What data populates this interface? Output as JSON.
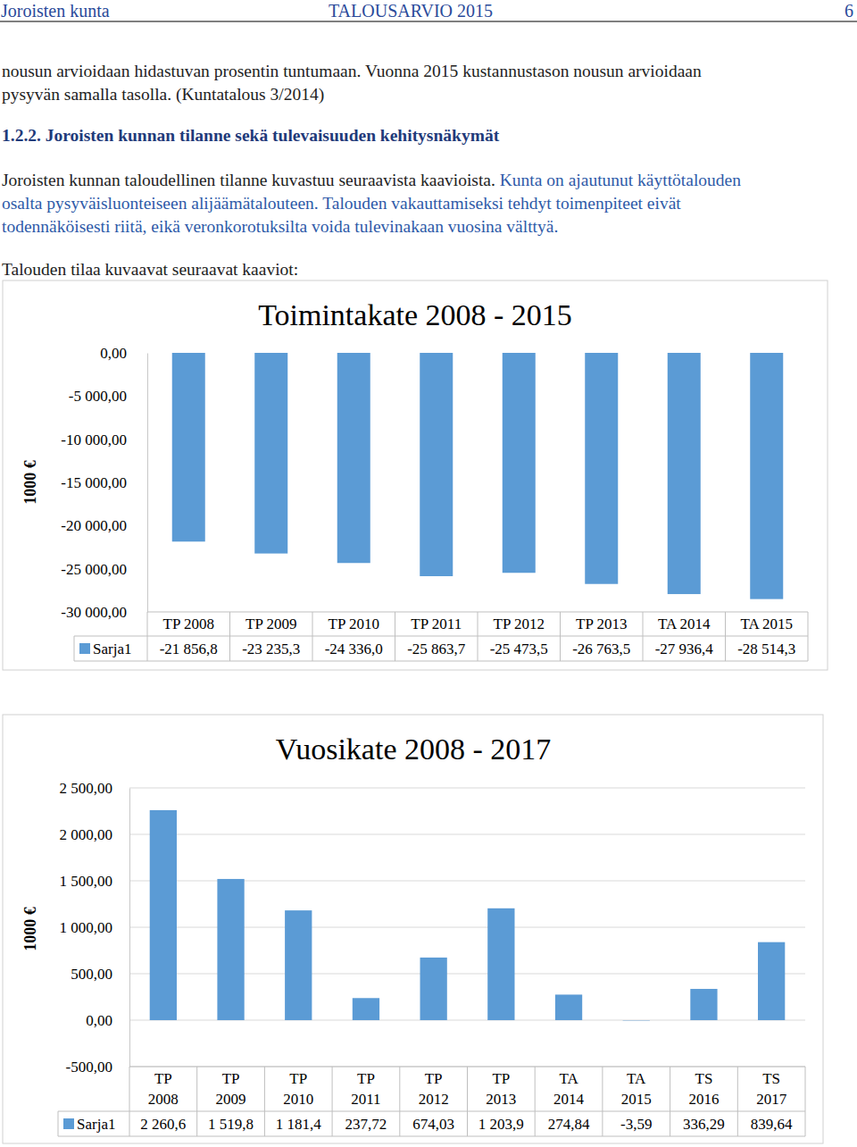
{
  "header": {
    "left": "Joroisten kunta",
    "center": "TALOUSARVIO 2015",
    "page": "6"
  },
  "paragraphs": [
    {
      "lines": [
        [
          {
            "text": "nousun arvioidaan hidastuvan prosentin tuntumaan. Vuonna 2015 kustannustason nousun arvioidaan"
          }
        ],
        [
          {
            "text": "pysyvän samalla tasolla. (Kuntatalous 3/2014)"
          }
        ]
      ]
    },
    {
      "lines": [
        [
          {
            "text": "Joroisten kunnan taloudellinen tilanne kuvastuu seuraavista kaavioista. "
          },
          {
            "text": "Kunta on ajautunut käyttötalouden",
            "color": "#2e5aa8"
          }
        ],
        [
          {
            "text": "osalta pysyväisluonteiseen alijäämätalouteen. Talouden vakauttamiseksi tehdyt toimenpiteet eivät",
            "color": "#2e5aa8"
          }
        ],
        [
          {
            "text": "todennäköisesti riitä, eikä veronkorotuksilta voida tulevinakaan vuosina välttyä.",
            "color": "#2e5aa8"
          }
        ]
      ]
    },
    {
      "lines": [
        [
          {
            "text": "Talouden tilaa kuvaavat seuraavat kaaviot:"
          }
        ]
      ]
    }
  ],
  "heading": "1.2.2. Joroisten kunnan tilanne sekä tulevaisuuden kehitysnäkymät",
  "chart_data": [
    {
      "type": "bar",
      "title": "Toimintakate 2008 - 2015",
      "ylabel": "1000 €",
      "categories": [
        "TP 2008",
        "TP 2009",
        "TP 2010",
        "TP 2011",
        "TP 2012",
        "TP 2013",
        "TA 2014",
        "TA 2015"
      ],
      "series": [
        {
          "name": "Sarja1",
          "color": "#5b9bd5",
          "values": [
            -21856.8,
            -23235.3,
            -24336.0,
            -25863.7,
            -25473.5,
            -26763.5,
            -27936.4,
            -28514.3
          ],
          "value_labels": [
            "-21 856,8",
            "-23 235,3",
            "-24 336,0",
            "-25 863,7",
            "-25 473,5",
            "-26 763,5",
            "-27 936,4",
            "-28 514,3"
          ]
        }
      ],
      "ylim": [
        -30000,
        0
      ],
      "yticks": [
        {
          "value": 0,
          "label": "0,00"
        },
        {
          "value": -5000,
          "label": "-5 000,00"
        },
        {
          "value": -10000,
          "label": "-10 000,00"
        },
        {
          "value": -15000,
          "label": "-15 000,00"
        },
        {
          "value": -20000,
          "label": "-20 000,00"
        },
        {
          "value": -25000,
          "label": "-25 000,00"
        },
        {
          "value": -30000,
          "label": "-30 000,00"
        }
      ],
      "grid": false
    },
    {
      "type": "bar",
      "title": "Vuosikate 2008 - 2017",
      "ylabel": "1000 €",
      "categories": [
        "TP 2008",
        "TP 2009",
        "TP 2010",
        "TP 2011",
        "TP 2012",
        "TP 2013",
        "TA 2014",
        "TA 2015",
        "TS 2016",
        "TS 2017"
      ],
      "series": [
        {
          "name": "Sarja1",
          "color": "#5b9bd5",
          "values": [
            2260.6,
            1519.8,
            1181.4,
            237.72,
            674.03,
            1203.9,
            274.84,
            -3.59,
            336.29,
            839.64
          ],
          "value_labels": [
            "2 260,6",
            "1 519,8",
            "1 181,4",
            "237,72",
            "674,03",
            "1 203,9",
            "274,84",
            "-3,59",
            "336,29",
            "839,64"
          ]
        }
      ],
      "ylim": [
        -500,
        2500
      ],
      "yticks": [
        {
          "value": 2500,
          "label": "2 500,00"
        },
        {
          "value": 2000,
          "label": "2 000,00"
        },
        {
          "value": 1500,
          "label": "1 500,00"
        },
        {
          "value": 1000,
          "label": "1 000,00"
        },
        {
          "value": 500,
          "label": "500,00"
        },
        {
          "value": 0,
          "label": "0,00"
        },
        {
          "value": -500,
          "label": "-500,00"
        }
      ],
      "grid": true
    }
  ]
}
